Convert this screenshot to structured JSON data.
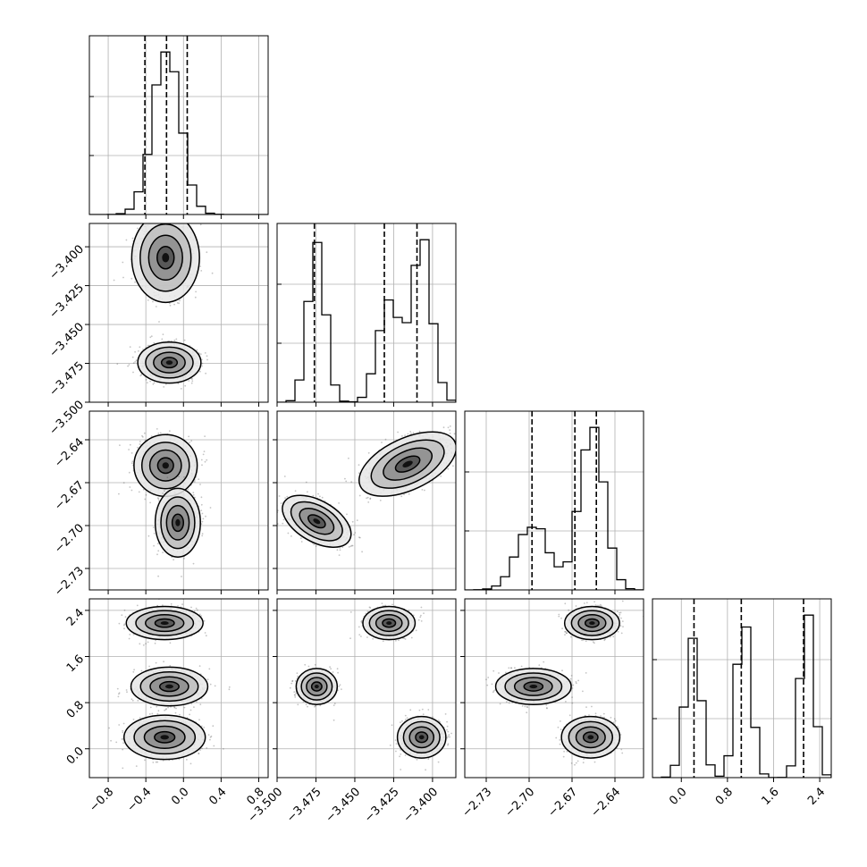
{
  "chart_data": {
    "type": "corner",
    "parameters": [
      {
        "range": [
          -1.0,
          0.9
        ],
        "ticks": [
          -0.8,
          -0.4,
          0.0,
          0.4,
          0.8
        ],
        "tick_labels": [
          "−0.8",
          "−0.4",
          "0.0",
          "0.4",
          "0.8"
        ],
        "modes": [
          {
            "mean": -0.18,
            "sd": 0.15,
            "w": 1.0
          }
        ],
        "quantiles": [
          -0.41,
          -0.18,
          0.04
        ]
      },
      {
        "range": [
          -3.5,
          -3.385
        ],
        "ticks": [
          -3.5,
          -3.475,
          -3.45,
          -3.425,
          -3.4
        ],
        "tick_labels": [
          "−3.500",
          "−3.475",
          "−3.450",
          "−3.425",
          "−3.400"
        ],
        "modes": [
          {
            "mean": -3.4745,
            "sd": 0.0055,
            "w": 0.34
          },
          {
            "mean": -3.428,
            "sd": 0.007,
            "w": 0.28
          },
          {
            "mean": -3.407,
            "sd": 0.0065,
            "w": 0.38
          }
        ],
        "quantiles": [
          -3.476,
          -3.431,
          -3.41
        ]
      },
      {
        "range": [
          -2.745,
          -2.62
        ],
        "ticks": [
          -2.73,
          -2.7,
          -2.67,
          -2.64
        ],
        "tick_labels": [
          "−2.73",
          "−2.70",
          "−2.67",
          "−2.64"
        ],
        "modes": [
          {
            "mean": -2.697,
            "sd": 0.011,
            "w": 0.34
          },
          {
            "mean": -2.656,
            "sd": 0.0085,
            "w": 0.66
          }
        ],
        "quantiles": [
          -2.698,
          -2.668,
          -2.653
        ]
      },
      {
        "range": [
          -0.5,
          2.6
        ],
        "ticks": [
          0.0,
          0.8,
          1.6,
          2.4
        ],
        "tick_labels": [
          "0.0",
          "0.8",
          "1.6",
          "2.4"
        ],
        "modes": [
          {
            "mean": 0.2,
            "sd": 0.14,
            "w": 0.33
          },
          {
            "mean": 1.08,
            "sd": 0.13,
            "w": 0.34
          },
          {
            "mean": 2.18,
            "sd": 0.12,
            "w": 0.33
          }
        ],
        "quantiles": [
          0.22,
          1.04,
          2.12
        ]
      }
    ],
    "hist_bins": 20,
    "joint_panels": [
      {
        "row": 1,
        "col": 0,
        "blobs": [
          {
            "cx": -0.19,
            "cy": -3.407,
            "sx": 0.15,
            "sy": 0.012,
            "cw": 3
          },
          {
            "cx": -0.15,
            "cy": -3.4745,
            "sx": 0.14,
            "sy": 0.0055,
            "cw": 2.6
          }
        ]
      },
      {
        "row": 2,
        "col": 0,
        "blobs": [
          {
            "cx": -0.19,
            "cy": -2.658,
            "sx": 0.14,
            "sy": 0.009,
            "cw": 3
          },
          {
            "cx": -0.06,
            "cy": -2.698,
            "sx": 0.1,
            "sy": 0.01,
            "cw": 1.2
          }
        ]
      },
      {
        "row": 2,
        "col": 1,
        "blobs": [
          {
            "cx": -3.4745,
            "cy": -2.697,
            "sx": 0.0055,
            "sy": 0.011,
            "cw": 2.2,
            "rot": -60
          },
          {
            "cx": -3.416,
            "cy": -2.657,
            "sx": 0.014,
            "sy": 0.0075,
            "cw": 3,
            "rot": -25
          }
        ]
      },
      {
        "row": 3,
        "col": 0,
        "blobs": [
          {
            "cx": -0.2,
            "cy": 2.18,
            "sx": 0.17,
            "sy": 0.12,
            "cw": 2.4
          },
          {
            "cx": -0.15,
            "cy": 1.08,
            "sx": 0.17,
            "sy": 0.14,
            "cw": 2.4
          },
          {
            "cx": -0.2,
            "cy": 0.2,
            "sx": 0.18,
            "sy": 0.16,
            "cw": 2.2
          }
        ]
      },
      {
        "row": 3,
        "col": 1,
        "blobs": [
          {
            "cx": -3.4745,
            "cy": 1.08,
            "sx": 0.0055,
            "sy": 0.13,
            "cw": 2.2
          },
          {
            "cx": -3.428,
            "cy": 2.18,
            "sx": 0.007,
            "sy": 0.12,
            "cw": 2.2
          },
          {
            "cx": -3.407,
            "cy": 0.2,
            "sx": 0.0065,
            "sy": 0.15,
            "cw": 2.2
          }
        ]
      },
      {
        "row": 3,
        "col": 2,
        "blobs": [
          {
            "cx": -2.697,
            "cy": 1.08,
            "sx": 0.011,
            "sy": 0.13,
            "cw": 2.2
          },
          {
            "cx": -2.656,
            "cy": 2.18,
            "sx": 0.008,
            "sy": 0.12,
            "cw": 2.2
          },
          {
            "cx": -2.657,
            "cy": 0.2,
            "sx": 0.0085,
            "sy": 0.15,
            "cw": 2.2
          }
        ]
      }
    ],
    "contour_levels_sigma": [
      0.6,
      1.2,
      1.8,
      2.4
    ],
    "grid": true,
    "xlabel": "",
    "ylabel": "",
    "title": ""
  }
}
